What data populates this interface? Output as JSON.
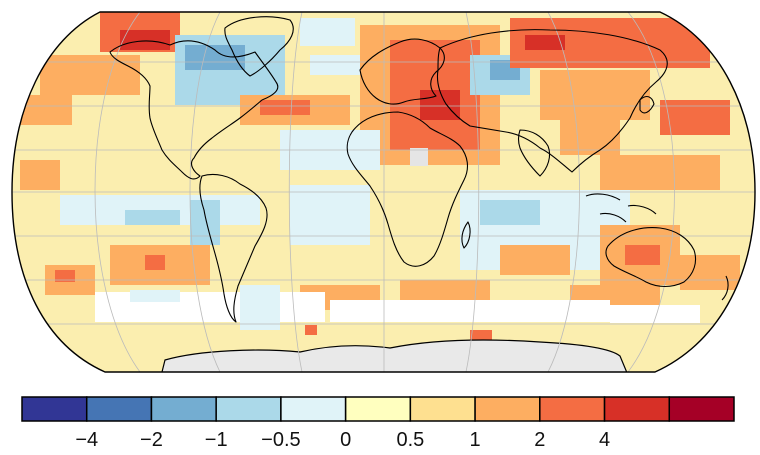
{
  "colorbar": {
    "colors": [
      "#313695",
      "#4575b4",
      "#74add1",
      "#abd9e9",
      "#e0f3f8",
      "#ffffbf",
      "#fee090",
      "#fdae61",
      "#f46d43",
      "#d73027",
      "#a50026"
    ],
    "tick_labels": [
      "−4",
      "−2",
      "−1",
      "−0.5",
      "0",
      "0.5",
      "1",
      "2",
      "4"
    ]
  },
  "map_colors": {
    "ocean_base": "#fbeeaf",
    "land": "#ffffff",
    "antarctica": "#e9e9e9",
    "no_data": "#e5e5e5",
    "coast": "#000000",
    "grid": "#bbbbbb"
  }
}
